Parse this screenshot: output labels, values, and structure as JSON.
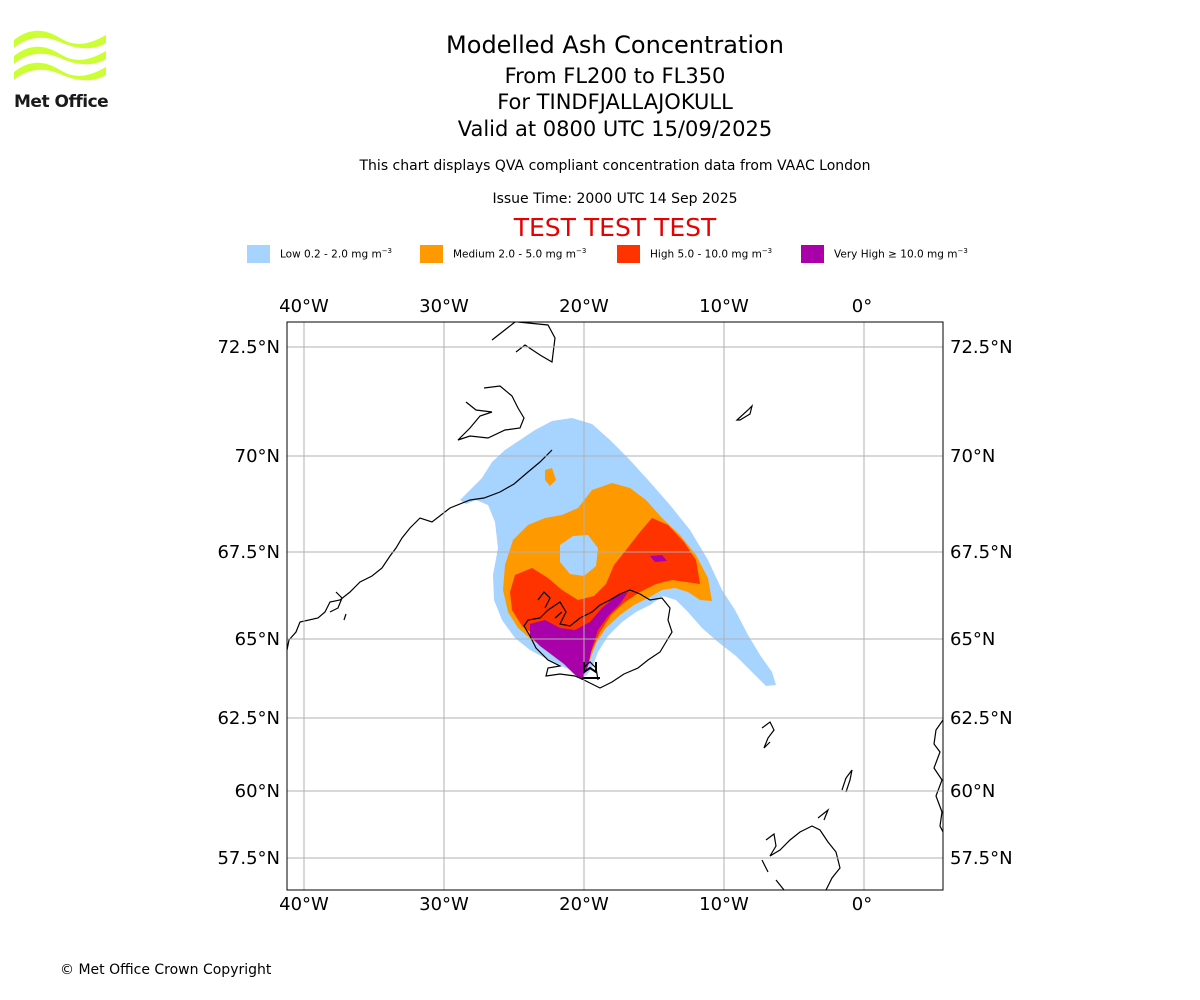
{
  "logo": {
    "text": "Met Office",
    "color": "#ccff33"
  },
  "title": {
    "line1": "Modelled Ash Concentration",
    "line2": "From FL200 to FL350",
    "line3": "For TINDFJALLAJOKULL",
    "line4": "Valid at 0800 UTC 15/09/2025"
  },
  "subtitle": "This chart displays QVA compliant concentration data from VAAC London",
  "issue_time": "Issue Time: 2000 UTC 14 Sep 2025",
  "test_banner": "TEST TEST TEST",
  "legend": [
    {
      "label": "Low 0.2 - 2.0 mg m",
      "unit_exp": "−3",
      "color": "#a6d3ff"
    },
    {
      "label": "Medium 2.0 - 5.0 mg m",
      "unit_exp": "−3",
      "color": "#ff9900"
    },
    {
      "label": "High 5.0 - 10.0 mg m",
      "unit_exp": "−3",
      "color": "#ff3300"
    },
    {
      "label": "Very High  ≥  10.0 mg m",
      "unit_exp": "−3",
      "color": "#aa00aa"
    }
  ],
  "map": {
    "lon_labels": [
      "40°W",
      "30°W",
      "20°W",
      "10°W",
      "0°"
    ],
    "lat_labels": [
      "72.5°N",
      "70°N",
      "67.5°N",
      "65°N",
      "62.5°N",
      "60°N",
      "57.5°N"
    ],
    "grid": true
  },
  "copyright": "© Met Office Crown Copyright"
}
